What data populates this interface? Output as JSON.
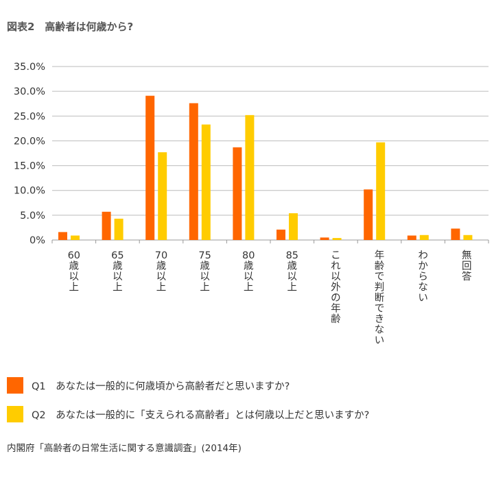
{
  "figure": {
    "title": "図表2　高齢者は何歳から?",
    "source": "内閣府「高齢者の日常生活に関する意識調査」(2014年)"
  },
  "colors": {
    "q1": "#ff6600",
    "q2": "#ffcc00",
    "grid": "#bbbbbb",
    "axis": "#999999"
  },
  "legend": [
    {
      "label": "Q1　あなたは一般的に何歳頃から高齢者だと思いますか?"
    },
    {
      "label": "Q2　あなたは一般的に「支えられる高齢者」とは何歳以上だと思いますか?"
    }
  ],
  "chart_data": {
    "type": "bar",
    "categories": [
      "60歳以上",
      "65歳以上",
      "70歳以上",
      "75歳以上",
      "80歳以上",
      "85歳以上",
      "これ以外の年齢",
      "年齢で判断できない",
      "わからない",
      "無回答"
    ],
    "series": [
      {
        "name": "Q1",
        "values": [
          1.6,
          5.7,
          29.1,
          27.6,
          18.7,
          2.1,
          0.5,
          10.2,
          0.9,
          2.3
        ]
      },
      {
        "name": "Q2",
        "values": [
          0.9,
          4.3,
          17.7,
          23.3,
          25.2,
          5.4,
          0.4,
          19.7,
          1.0,
          1.0
        ]
      }
    ],
    "ylim": [
      0,
      35
    ],
    "yticks": [
      0,
      5,
      10,
      15,
      20,
      25,
      30,
      35
    ],
    "ytick_labels": [
      "0%",
      "5.0%",
      "10.0%",
      "15.0%",
      "20.0%",
      "25.0%",
      "30.0%",
      "35.0%"
    ],
    "grid": true
  }
}
